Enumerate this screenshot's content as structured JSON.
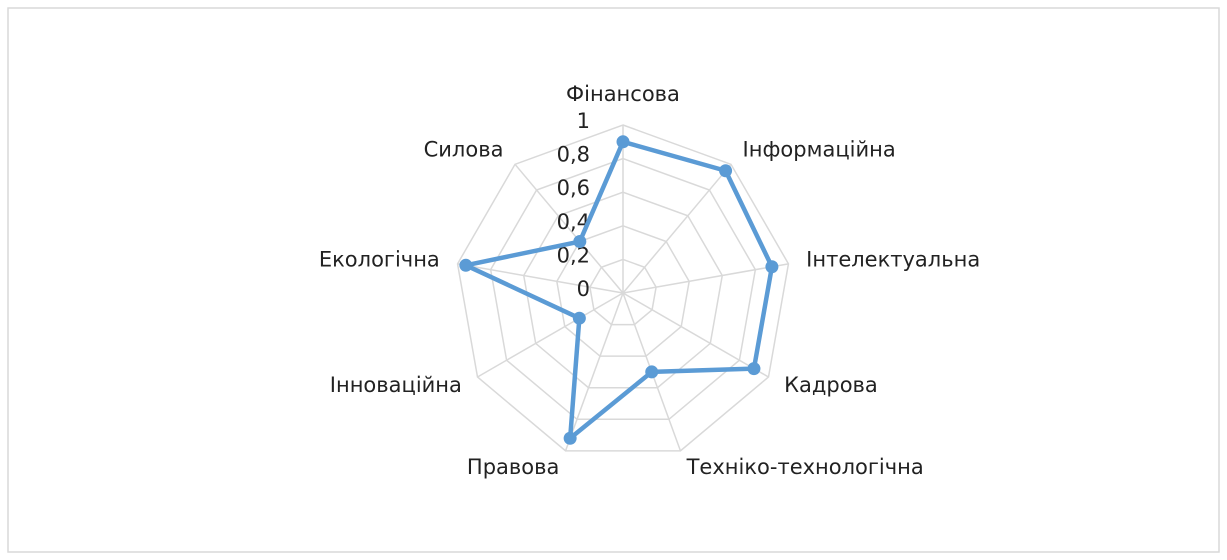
{
  "chart_data": {
    "type": "radar",
    "categories": [
      "Фінансова",
      "Інформаційна",
      "Інтелектуальна",
      "Кадрова",
      "Техніко-технологічна",
      "Правова",
      "Інноваційна",
      "Екологічна",
      "Силова"
    ],
    "series": [
      {
        "color": "#5b9bd5",
        "values": [
          0.9,
          0.95,
          0.9,
          0.9,
          0.5,
          0.92,
          0.3,
          0.95,
          0.4
        ]
      }
    ],
    "ylim": [
      0,
      1
    ],
    "yticks": [
      0,
      {
        "value": 0.2,
        "label": "0,2"
      },
      {
        "value": 0.4,
        "label": "0,4"
      },
      {
        "value": 0.6,
        "label": "0,6"
      },
      {
        "value": 0.8,
        "label": "0,8"
      },
      1
    ],
    "grid": true
  }
}
